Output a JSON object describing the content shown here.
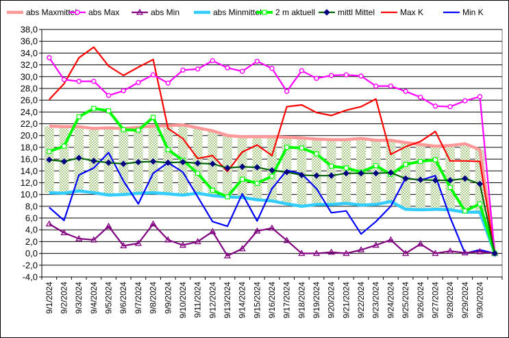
{
  "chart_data": {
    "type": "line",
    "title": "",
    "xlabel": "",
    "ylabel": "",
    "ylim": [
      -4,
      38
    ],
    "ytick_step": 2,
    "grid": true,
    "legend_position": "top",
    "categories": [
      "9/1/2024",
      "9/2/2024",
      "9/3/2024",
      "9/4/2024",
      "9/5/2024",
      "9/6/2024",
      "9/7/2024",
      "9/8/2024",
      "9/9/2024",
      "9/10/2024",
      "9/11/2024",
      "9/12/2024",
      "9/13/2024",
      "9/14/2024",
      "9/15/2024",
      "9/16/2024",
      "9/17/2024",
      "9/18/2024",
      "9/19/2024",
      "9/20/2024",
      "9/21/2024",
      "9/22/2024",
      "9/23/2024",
      "9/24/2024",
      "9/25/2024",
      "9/26/2024",
      "9/27/2024",
      "9/28/2024",
      "9/29/2024",
      "9/30/2024",
      ""
    ],
    "series": [
      {
        "name": "abs Maxmittel",
        "color": "#ff9999",
        "style": "thick",
        "values": [
          21.6,
          21.5,
          21.5,
          21.2,
          21.3,
          21.2,
          21.4,
          21.6,
          21.7,
          21.8,
          21.3,
          20.8,
          20.0,
          19.8,
          19.8,
          19.8,
          19.7,
          19.6,
          19.4,
          19.3,
          19.3,
          19.5,
          19.2,
          19.2,
          18.8,
          18.5,
          18.2,
          18.3,
          18.6,
          17.6,
          0.0
        ]
      },
      {
        "name": "abs Max",
        "color": "#ff00ff",
        "style": "circle",
        "values": [
          33.2,
          29.5,
          29.2,
          29.2,
          26.8,
          27.6,
          29.0,
          30.3,
          28.9,
          31.1,
          31.3,
          32.7,
          31.5,
          30.9,
          32.6,
          31.4,
          27.5,
          31.0,
          29.7,
          30.2,
          30.3,
          30.1,
          28.4,
          28.4,
          27.5,
          26.5,
          25.0,
          24.9,
          25.9,
          26.6,
          0.0
        ]
      },
      {
        "name": "abs Min",
        "color": "#800080",
        "style": "triangle",
        "values": [
          5.0,
          3.5,
          2.5,
          2.3,
          4.6,
          1.3,
          1.7,
          5.0,
          2.3,
          1.4,
          2.0,
          3.7,
          -0.4,
          0.8,
          3.8,
          4.3,
          2.2,
          0.0,
          0.0,
          0.2,
          0.0,
          0.6,
          1.4,
          2.3,
          0.0,
          1.6,
          0.0,
          0.4,
          0.1,
          0.3,
          0.0
        ]
      },
      {
        "name": "abs Minmittel",
        "color": "#33ccff",
        "style": "thick",
        "values": [
          10.3,
          10.2,
          10.6,
          10.3,
          9.9,
          10.0,
          10.2,
          10.3,
          10.1,
          9.9,
          10.2,
          9.8,
          9.6,
          9.5,
          9.1,
          8.9,
          8.4,
          8.0,
          8.3,
          8.3,
          8.5,
          8.2,
          8.3,
          8.8,
          7.5,
          7.4,
          7.5,
          7.4,
          7.0,
          7.0,
          0.0
        ]
      },
      {
        "name": "2 m aktuell",
        "color": "#00ff00",
        "style": "square",
        "values": [
          17.3,
          18.2,
          23.2,
          24.6,
          24.2,
          21.0,
          20.9,
          23.1,
          17.6,
          15.8,
          13.6,
          10.7,
          9.6,
          12.6,
          11.9,
          13.1,
          18.0,
          17.9,
          16.9,
          14.8,
          14.5,
          13.8,
          14.9,
          13.4,
          15.1,
          15.6,
          15.9,
          11.2,
          7.2,
          8.4,
          0.0
        ]
      },
      {
        "name": "mittl Mittel",
        "color": "#006400",
        "style": "diamond",
        "values": [
          15.9,
          15.6,
          16.2,
          15.7,
          15.4,
          15.2,
          15.5,
          15.6,
          15.4,
          15.5,
          15.3,
          15.2,
          14.5,
          14.7,
          14.6,
          14.1,
          13.8,
          13.3,
          13.2,
          13.2,
          13.6,
          13.6,
          13.6,
          13.7,
          12.7,
          12.5,
          12.4,
          12.4,
          12.7,
          11.8,
          0.0
        ]
      },
      {
        "name": "Max K",
        "color": "#ff0000",
        "style": "line",
        "values": [
          26.1,
          28.8,
          33.2,
          35.0,
          31.8,
          30.2,
          31.6,
          32.9,
          21.2,
          19.5,
          16.1,
          16.6,
          13.9,
          17.2,
          18.4,
          16.6,
          24.9,
          25.2,
          23.9,
          23.4,
          24.3,
          24.9,
          26.2,
          16.8,
          18.1,
          19.0,
          20.7,
          15.7,
          15.7,
          15.6,
          0.0
        ]
      },
      {
        "name": "Min K",
        "color": "#0000ff",
        "style": "line",
        "values": [
          7.8,
          5.6,
          13.3,
          14.5,
          17.1,
          12.3,
          8.4,
          13.6,
          15.4,
          13.8,
          9.6,
          5.4,
          4.6,
          10.1,
          5.5,
          11.0,
          14.1,
          13.5,
          11.0,
          6.9,
          7.2,
          3.3,
          5.4,
          8.0,
          12.8,
          12.4,
          13.2,
          6.1,
          0.0,
          0.6,
          0.0
        ]
      }
    ]
  }
}
